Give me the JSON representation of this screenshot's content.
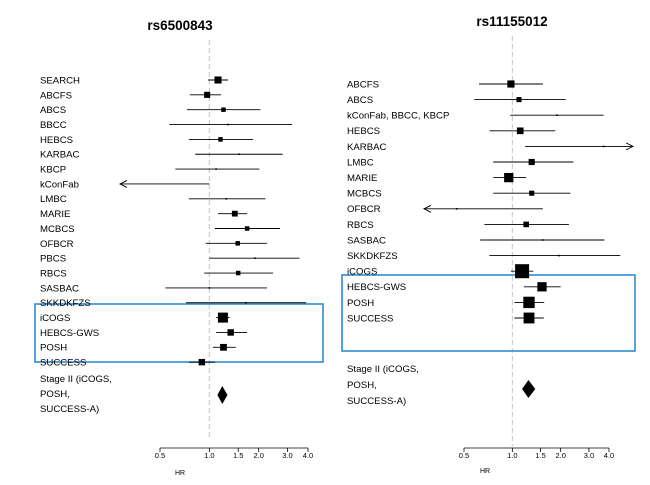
{
  "chart_data": [
    {
      "type": "forest",
      "title": "rs6500843",
      "xlabel": "HR",
      "xscale": "log",
      "xlim": [
        0.5,
        4.0
      ],
      "ticks": [
        "0.5",
        "1.0",
        "1.5",
        "2.0",
        "3.0",
        "4.0"
      ],
      "reference": 1.0,
      "studies": [
        {
          "label": "SEARCH",
          "hr": 1.13,
          "lo": 0.98,
          "hi": 1.3,
          "weight": 0.55
        },
        {
          "label": "ABCFS",
          "hr": 0.97,
          "lo": 0.76,
          "hi": 1.18,
          "weight": 0.4
        },
        {
          "label": "ABCS",
          "hr": 1.22,
          "lo": 0.73,
          "hi": 2.05,
          "weight": 0.15
        },
        {
          "label": "BBCC",
          "hr": 1.3,
          "lo": 0.57,
          "hi": 3.2,
          "weight": 0.1
        },
        {
          "label": "HEBCS",
          "hr": 1.17,
          "lo": 0.75,
          "hi": 1.85,
          "weight": 0.15
        },
        {
          "label": "KARBAC",
          "hr": 1.52,
          "lo": 0.82,
          "hi": 2.8,
          "weight": 0.12
        },
        {
          "label": "KBCP",
          "hr": 1.1,
          "lo": 0.62,
          "hi": 2.02,
          "weight": 0.12
        },
        {
          "label": "kConFab",
          "hr": 1.0,
          "lo": 0.3,
          "hi": 1.0,
          "weight": 0.0,
          "arrow_left": true
        },
        {
          "label": "LMBC",
          "hr": 1.27,
          "lo": 0.75,
          "hi": 2.2,
          "weight": 0.12
        },
        {
          "label": "MARIE",
          "hr": 1.43,
          "lo": 1.13,
          "hi": 1.7,
          "weight": 0.35
        },
        {
          "label": "MCBCS",
          "hr": 1.7,
          "lo": 1.08,
          "hi": 2.7,
          "weight": 0.15
        },
        {
          "label": "OFBCR",
          "hr": 1.49,
          "lo": 0.95,
          "hi": 2.25,
          "weight": 0.15
        },
        {
          "label": "PBCS",
          "hr": 1.9,
          "lo": 1.0,
          "hi": 3.55,
          "weight": 0.12
        },
        {
          "label": "RBCS",
          "hr": 1.5,
          "lo": 0.93,
          "hi": 2.45,
          "weight": 0.15
        },
        {
          "label": "SASBAC",
          "hr": 1.0,
          "lo": 0.54,
          "hi": 2.25,
          "weight": 0.1
        },
        {
          "label": "SKKDKFZS",
          "hr": 1.67,
          "lo": 0.72,
          "hi": 3.9,
          "weight": 0.1
        },
        {
          "label": "iCOGS",
          "hr": 1.21,
          "lo": 1.1,
          "hi": 1.33,
          "weight": 1.0
        },
        {
          "label": "HEBCS-GWS",
          "hr": 1.35,
          "lo": 1.1,
          "hi": 1.7,
          "weight": 0.45
        },
        {
          "label": "POSH",
          "hr": 1.22,
          "lo": 1.05,
          "hi": 1.45,
          "weight": 0.5
        },
        {
          "label": "SUCCESS",
          "hr": 0.9,
          "lo": 0.75,
          "hi": 1.08,
          "weight": 0.45
        }
      ],
      "highlight_group": [
        "iCOGS",
        "HEBCS-GWS",
        "POSH",
        "SUCCESS"
      ],
      "summary": {
        "label_lines": [
          "Stage II (iCOGS,",
          "POSH,",
          "SUCCESS-A)"
        ],
        "hr": 1.2,
        "lo": 1.12,
        "hi": 1.29
      }
    },
    {
      "type": "forest",
      "title": "rs11155012",
      "xlabel": "HR",
      "xscale": "log",
      "xlim": [
        0.5,
        4.0
      ],
      "ticks": [
        "0.5",
        "1.0",
        "1.5",
        "2.0",
        "3.0",
        "4.0"
      ],
      "reference": 1.0,
      "studies": [
        {
          "label": "ABCFS",
          "hr": 0.98,
          "lo": 0.62,
          "hi": 1.55,
          "weight": 0.35
        },
        {
          "label": "ABCS",
          "hr": 1.1,
          "lo": 0.58,
          "hi": 2.15,
          "weight": 0.15
        },
        {
          "label": "kConFab, BBCC, KBCP",
          "hr": 1.9,
          "lo": 0.97,
          "hi": 3.7,
          "weight": 0.12
        },
        {
          "label": "HEBCS",
          "hr": 1.12,
          "lo": 0.72,
          "hi": 1.85,
          "weight": 0.3
        },
        {
          "label": "KARBAC",
          "hr": 3.7,
          "lo": 1.2,
          "hi": 6.0,
          "weight": 0.1,
          "arrow_right": true
        },
        {
          "label": "LMBC",
          "hr": 1.32,
          "lo": 0.76,
          "hi": 2.4,
          "weight": 0.25
        },
        {
          "label": "MARIE",
          "hr": 0.95,
          "lo": 0.76,
          "hi": 1.22,
          "weight": 0.55
        },
        {
          "label": "MCBCS",
          "hr": 1.32,
          "lo": 0.76,
          "hi": 2.3,
          "weight": 0.15
        },
        {
          "label": "OFBCR",
          "hr": 0.45,
          "lo": 0.3,
          "hi": 1.55,
          "weight": 0.1,
          "arrow_left": true
        },
        {
          "label": "RBCS",
          "hr": 1.22,
          "lo": 0.67,
          "hi": 2.25,
          "weight": 0.2
        },
        {
          "label": "SASBAC",
          "hr": 1.55,
          "lo": 0.63,
          "hi": 3.75,
          "weight": 0.1
        },
        {
          "label": "SKKDKFZS",
          "hr": 1.95,
          "lo": 0.72,
          "hi": 4.7,
          "weight": 0.1
        },
        {
          "label": "iCOGS",
          "hr": 1.15,
          "lo": 0.98,
          "hi": 1.35,
          "weight": 1.0
        },
        {
          "label": "HEBCS-GWS",
          "hr": 1.53,
          "lo": 1.18,
          "hi": 2.0,
          "weight": 0.55
        },
        {
          "label": "POSH",
          "hr": 1.27,
          "lo": 1.03,
          "hi": 1.58,
          "weight": 0.75
        },
        {
          "label": "SUCCESS",
          "hr": 1.27,
          "lo": 1.03,
          "hi": 1.57,
          "weight": 0.7
        }
      ],
      "highlight_group": [
        "iCOGS",
        "HEBCS-GWS",
        "POSH",
        "SUCCESS"
      ],
      "summary": {
        "label_lines": [
          "Stage II (iCOGS,",
          "POSH,",
          "SUCCESS-A)"
        ],
        "hr": 1.26,
        "lo": 1.15,
        "hi": 1.39
      }
    }
  ]
}
